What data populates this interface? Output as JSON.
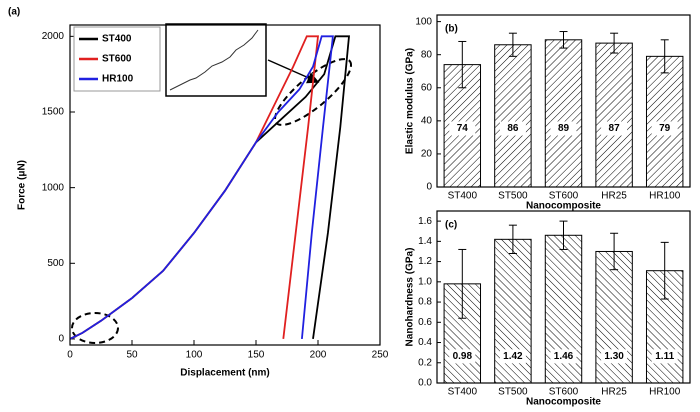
{
  "chart_data": [
    {
      "type": "line",
      "label": "(a)",
      "xlabel": "Displacement (nm)",
      "ylabel": "Force (μN)",
      "xlim": [
        0,
        250
      ],
      "ylim": [
        -40,
        2075
      ],
      "xticks": [
        0,
        50,
        100,
        150,
        200,
        250
      ],
      "yticks": [
        0,
        500,
        1000,
        1500,
        2000
      ],
      "legend": "upper left",
      "series": [
        {
          "name": "ST400",
          "color": "#000000",
          "x": [
            0,
            10,
            25,
            50,
            75,
            100,
            125,
            150,
            170,
            190,
            205,
            214,
            225,
            218,
            208,
            196
          ],
          "values": [
            0,
            40,
            120,
            270,
            450,
            700,
            980,
            1300,
            1450,
            1600,
            1750,
            2000,
            2000,
            1400,
            700,
            0
          ]
        },
        {
          "name": "ST600",
          "color": "#e02020",
          "x": [
            0,
            10,
            25,
            50,
            75,
            100,
            125,
            150,
            165,
            180,
            191,
            200,
            192,
            182,
            172
          ],
          "values": [
            0,
            40,
            120,
            270,
            450,
            700,
            980,
            1300,
            1550,
            1800,
            2000,
            2000,
            1400,
            700,
            0
          ]
        },
        {
          "name": "HR100",
          "color": "#2020e0",
          "x": [
            0,
            10,
            25,
            50,
            75,
            100,
            125,
            150,
            168,
            185,
            196,
            203,
            212,
            204,
            195,
            187
          ],
          "values": [
            0,
            40,
            120,
            270,
            450,
            700,
            980,
            1300,
            1500,
            1650,
            1800,
            2000,
            2000,
            1400,
            700,
            0
          ]
        }
      ]
    },
    {
      "type": "bar",
      "label": "(b)",
      "xlabel": "Nanocomposite",
      "ylabel": "Elastic modulus (GPa)",
      "categories": [
        "ST400",
        "ST500",
        "ST600",
        "HR25",
        "HR100"
      ],
      "ylim": [
        0,
        104
      ],
      "yticks": [
        0,
        20,
        40,
        60,
        80,
        100
      ],
      "series": [
        {
          "color": "#000000",
          "values": [
            74,
            86,
            89,
            87,
            79
          ],
          "errors": [
            14,
            7,
            5,
            6,
            10
          ]
        }
      ]
    },
    {
      "type": "bar",
      "label": "(c)",
      "xlabel": "Nanocomposite",
      "ylabel": "Nanohardness (GPa)",
      "categories": [
        "ST400",
        "ST500",
        "ST600",
        "HR25",
        "HR100"
      ],
      "ylim": [
        0,
        1.7
      ],
      "yticks": [
        {
          "value": 0,
          "label": "0.0"
        },
        0.2,
        0.4,
        0.6,
        0.8,
        {
          "value": 1,
          "label": "1.0"
        },
        1.2,
        1.4,
        1.6
      ],
      "series": [
        {
          "color": "#000000",
          "values": [
            0.98,
            1.42,
            1.46,
            1.3,
            1.11
          ],
          "value_labels": [
            "0.98",
            "1.42",
            "1.46",
            "1.30",
            "1.11"
          ],
          "errors": [
            0.34,
            0.14,
            0.14,
            0.18,
            0.28
          ]
        }
      ]
    }
  ]
}
